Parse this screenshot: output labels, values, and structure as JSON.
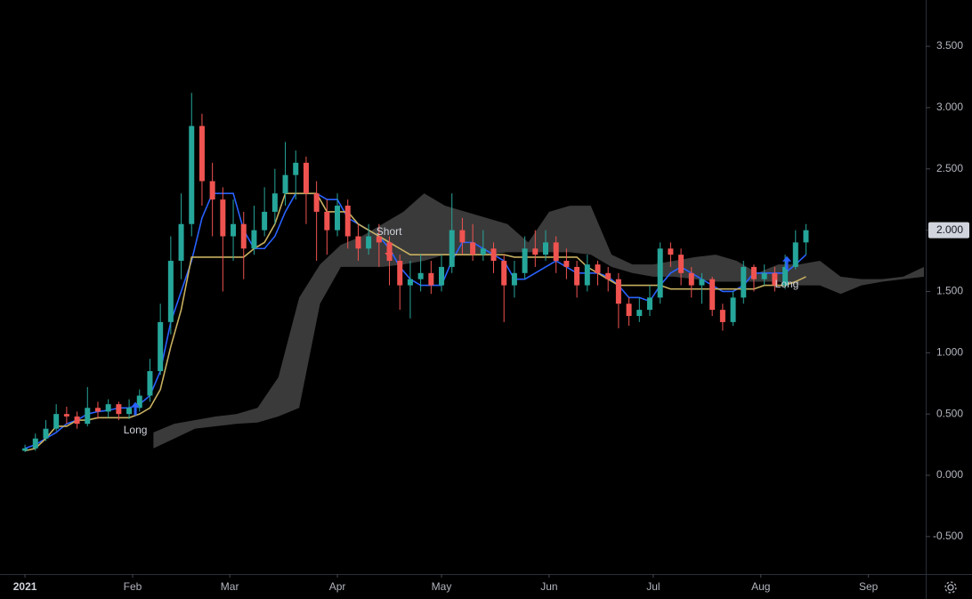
{
  "chart_data": {
    "type": "candlestick",
    "up_color": "#26a69a",
    "down_color": "#ef5350",
    "candles": {
      "x": [
        0,
        3,
        6,
        9,
        12,
        15,
        18,
        21,
        24,
        27,
        30,
        33,
        36,
        39,
        42,
        45,
        48,
        51,
        54,
        57,
        60,
        63,
        66,
        69,
        72,
        75,
        78,
        81,
        84,
        87,
        90,
        93,
        96,
        99,
        102,
        105,
        108,
        111,
        114,
        117,
        120,
        123,
        126,
        129,
        132,
        135,
        138,
        141,
        144,
        147,
        150,
        153,
        156,
        159,
        162,
        165,
        168,
        171,
        174,
        177,
        180,
        183,
        186,
        189,
        192,
        195,
        198,
        201,
        204,
        207,
        210,
        213,
        216,
        219,
        222,
        225
      ],
      "open": [
        0.2,
        0.22,
        0.3,
        0.38,
        0.5,
        0.48,
        0.42,
        0.55,
        0.52,
        0.58,
        0.5,
        0.55,
        0.65,
        0.85,
        1.25,
        1.75,
        2.05,
        2.85,
        2.4,
        2.25,
        1.95,
        2.05,
        1.85,
        2.0,
        2.15,
        2.3,
        2.45,
        2.55,
        2.3,
        2.15,
        2.0,
        2.2,
        1.95,
        1.85,
        1.95,
        1.9,
        1.75,
        1.55,
        1.6,
        1.65,
        1.55,
        1.7,
        2.0,
        1.9,
        1.8,
        1.85,
        1.75,
        1.55,
        1.65,
        1.85,
        1.8,
        1.9,
        1.75,
        1.7,
        1.55,
        1.72,
        1.65,
        1.6,
        1.4,
        1.3,
        1.35,
        1.45,
        1.85,
        1.8,
        1.65,
        1.55,
        1.6,
        1.35,
        1.25,
        1.45,
        1.7,
        1.6,
        1.65,
        1.55,
        1.7,
        1.9
      ],
      "high": [
        0.25,
        0.34,
        0.45,
        0.58,
        0.56,
        0.52,
        0.72,
        0.6,
        0.62,
        0.6,
        0.62,
        0.7,
        0.95,
        1.4,
        1.95,
        2.3,
        3.12,
        2.95,
        2.55,
        2.35,
        2.25,
        2.15,
        2.2,
        2.35,
        2.5,
        2.72,
        2.65,
        2.6,
        2.4,
        2.25,
        2.3,
        2.25,
        2.05,
        2.05,
        2.05,
        1.95,
        1.8,
        1.75,
        1.8,
        1.75,
        1.8,
        2.3,
        2.1,
        2.05,
        2.0,
        1.9,
        1.8,
        1.75,
        1.95,
        2.0,
        2.0,
        1.95,
        1.85,
        1.75,
        1.8,
        1.75,
        1.7,
        1.65,
        1.45,
        1.45,
        1.55,
        1.9,
        1.9,
        1.85,
        1.7,
        1.65,
        1.62,
        1.4,
        1.5,
        1.75,
        1.72,
        1.72,
        1.7,
        1.8,
        2.0,
        2.05
      ],
      "low": [
        0.19,
        0.2,
        0.28,
        0.36,
        0.42,
        0.38,
        0.4,
        0.46,
        0.47,
        0.45,
        0.46,
        0.52,
        0.6,
        0.82,
        1.15,
        1.6,
        1.95,
        2.2,
        1.95,
        1.5,
        1.75,
        1.6,
        1.8,
        1.95,
        2.05,
        2.2,
        2.25,
        2.05,
        1.75,
        1.8,
        1.95,
        1.85,
        1.75,
        1.8,
        1.7,
        1.55,
        1.35,
        1.28,
        1.5,
        1.48,
        1.5,
        1.65,
        1.8,
        1.75,
        1.75,
        1.65,
        1.25,
        1.45,
        1.6,
        1.7,
        1.75,
        1.65,
        1.6,
        1.45,
        1.5,
        1.55,
        1.5,
        1.2,
        1.22,
        1.25,
        1.3,
        1.4,
        1.7,
        1.55,
        1.45,
        1.4,
        1.3,
        1.18,
        1.22,
        1.4,
        1.5,
        1.55,
        1.5,
        1.52,
        1.68,
        1.8
      ],
      "close": [
        0.22,
        0.3,
        0.38,
        0.5,
        0.48,
        0.42,
        0.55,
        0.52,
        0.58,
        0.5,
        0.55,
        0.65,
        0.85,
        1.25,
        1.75,
        2.05,
        2.85,
        2.4,
        2.25,
        1.95,
        2.05,
        1.85,
        2.0,
        2.15,
        2.3,
        2.45,
        2.55,
        2.3,
        2.15,
        2.0,
        2.2,
        1.95,
        1.85,
        1.95,
        1.9,
        1.75,
        1.55,
        1.6,
        1.65,
        1.55,
        1.7,
        2.0,
        1.9,
        1.8,
        1.85,
        1.75,
        1.55,
        1.65,
        1.85,
        1.8,
        1.9,
        1.75,
        1.7,
        1.55,
        1.72,
        1.65,
        1.6,
        1.4,
        1.3,
        1.35,
        1.45,
        1.85,
        1.8,
        1.65,
        1.55,
        1.6,
        1.35,
        1.25,
        1.45,
        1.7,
        1.6,
        1.65,
        1.55,
        1.7,
        1.9,
        2.0
      ]
    },
    "lines": [
      {
        "color": "#2962ff",
        "values": [
          0.22,
          0.25,
          0.3,
          0.35,
          0.42,
          0.45,
          0.5,
          0.52,
          0.53,
          0.55,
          0.55,
          0.58,
          0.65,
          0.85,
          1.25,
          1.5,
          1.75,
          2.1,
          2.3,
          2.3,
          2.3,
          2.0,
          1.85,
          1.85,
          1.95,
          2.15,
          2.3,
          2.3,
          2.3,
          2.25,
          2.25,
          2.1,
          2.05,
          2.0,
          1.95,
          1.85,
          1.7,
          1.6,
          1.55,
          1.55,
          1.55,
          1.75,
          1.9,
          1.9,
          1.85,
          1.8,
          1.75,
          1.6,
          1.6,
          1.65,
          1.7,
          1.75,
          1.7,
          1.65,
          1.65,
          1.65,
          1.62,
          1.55,
          1.45,
          1.45,
          1.42,
          1.55,
          1.65,
          1.7,
          1.65,
          1.6,
          1.55,
          1.5,
          1.5,
          1.55,
          1.65,
          1.65,
          1.65,
          1.65,
          1.72,
          1.8
        ]
      },
      {
        "color": "#c8b060",
        "values": [
          0.2,
          0.22,
          0.3,
          0.4,
          0.4,
          0.45,
          0.45,
          0.47,
          0.47,
          0.47,
          0.47,
          0.5,
          0.55,
          0.7,
          1.05,
          1.35,
          1.78,
          1.78,
          1.78,
          1.78,
          1.78,
          1.78,
          1.85,
          1.9,
          2.05,
          2.3,
          2.3,
          2.3,
          2.3,
          2.15,
          2.15,
          2.15,
          2.05,
          2.0,
          1.95,
          1.9,
          1.85,
          1.8,
          1.8,
          1.8,
          1.8,
          1.8,
          1.8,
          1.8,
          1.8,
          1.8,
          1.8,
          1.78,
          1.78,
          1.78,
          1.78,
          1.78,
          1.78,
          1.78,
          1.7,
          1.65,
          1.6,
          1.55,
          1.55,
          1.55,
          1.55,
          1.55,
          1.52,
          1.52,
          1.52,
          1.52,
          1.52,
          1.52,
          1.52,
          1.52,
          1.52,
          1.55,
          1.55,
          1.55,
          1.58,
          1.62
        ]
      }
    ],
    "band": {
      "color": "#3a3a3a",
      "x": [
        37,
        43,
        49,
        55,
        61,
        67,
        73,
        79,
        85,
        91,
        97,
        103,
        109,
        115,
        121,
        127,
        133,
        139,
        145,
        151,
        157,
        163,
        169,
        175,
        181,
        187,
        193,
        199,
        205,
        211,
        217,
        223,
        229,
        235,
        241,
        247,
        253,
        259
      ],
      "upper": [
        0.35,
        0.42,
        0.45,
        0.48,
        0.5,
        0.55,
        0.8,
        1.45,
        1.72,
        1.88,
        1.95,
        2.05,
        2.15,
        2.3,
        2.2,
        2.15,
        2.1,
        2.05,
        1.9,
        2.15,
        2.2,
        2.2,
        1.8,
        1.72,
        1.72,
        1.75,
        1.78,
        1.8,
        1.75,
        1.65,
        1.72,
        1.72,
        1.75,
        1.62,
        1.6,
        1.6,
        1.62,
        1.7
      ],
      "lower": [
        0.22,
        0.3,
        0.38,
        0.4,
        0.42,
        0.43,
        0.48,
        0.55,
        1.4,
        1.7,
        1.7,
        1.7,
        1.72,
        1.75,
        1.8,
        1.8,
        1.8,
        1.82,
        1.82,
        1.82,
        1.82,
        1.8,
        1.7,
        1.65,
        1.62,
        1.62,
        1.6,
        1.58,
        1.58,
        1.58,
        1.58,
        1.55,
        1.55,
        1.48,
        1.55,
        1.58,
        1.6,
        1.62
      ]
    },
    "annotations": [
      {
        "text": "Long",
        "x": 31.8,
        "y": 0.54,
        "direction": "up"
      },
      {
        "text": "Short",
        "x": 104.9,
        "y": 1.83,
        "direction": "down"
      },
      {
        "text": "Long",
        "x": 219.5,
        "y": 1.73,
        "direction": "up"
      }
    ],
    "last_price": {
      "value": 2.0,
      "label": "2.000"
    },
    "xlim": [
      -7.2,
      259.5
    ],
    "xticks": [
      {
        "value": 0,
        "label": "2021"
      },
      {
        "value": 31,
        "label": "Feb"
      },
      {
        "value": 59,
        "label": "Mar"
      },
      {
        "value": 90,
        "label": "Apr"
      },
      {
        "value": 120,
        "label": "May"
      },
      {
        "value": 151,
        "label": "Jun"
      },
      {
        "value": 181,
        "label": "Jul"
      },
      {
        "value": 212,
        "label": "Aug"
      },
      {
        "value": 243,
        "label": "Sep"
      }
    ],
    "ylim": [
      -0.806,
      3.878
    ],
    "yticks": [
      {
        "value": 3.5,
        "label": "3.500"
      },
      {
        "value": 3.0,
        "label": "3.000"
      },
      {
        "value": 2.5,
        "label": "2.500"
      },
      {
        "value": 2.0,
        "label": "2.000"
      },
      {
        "value": 1.5,
        "label": "1.500"
      },
      {
        "value": 1.0,
        "label": "1.000"
      },
      {
        "value": 0.5,
        "label": "0.500"
      },
      {
        "value": 0,
        "label": "0.000"
      },
      {
        "value": -0.5,
        "label": "-0.500"
      }
    ]
  }
}
